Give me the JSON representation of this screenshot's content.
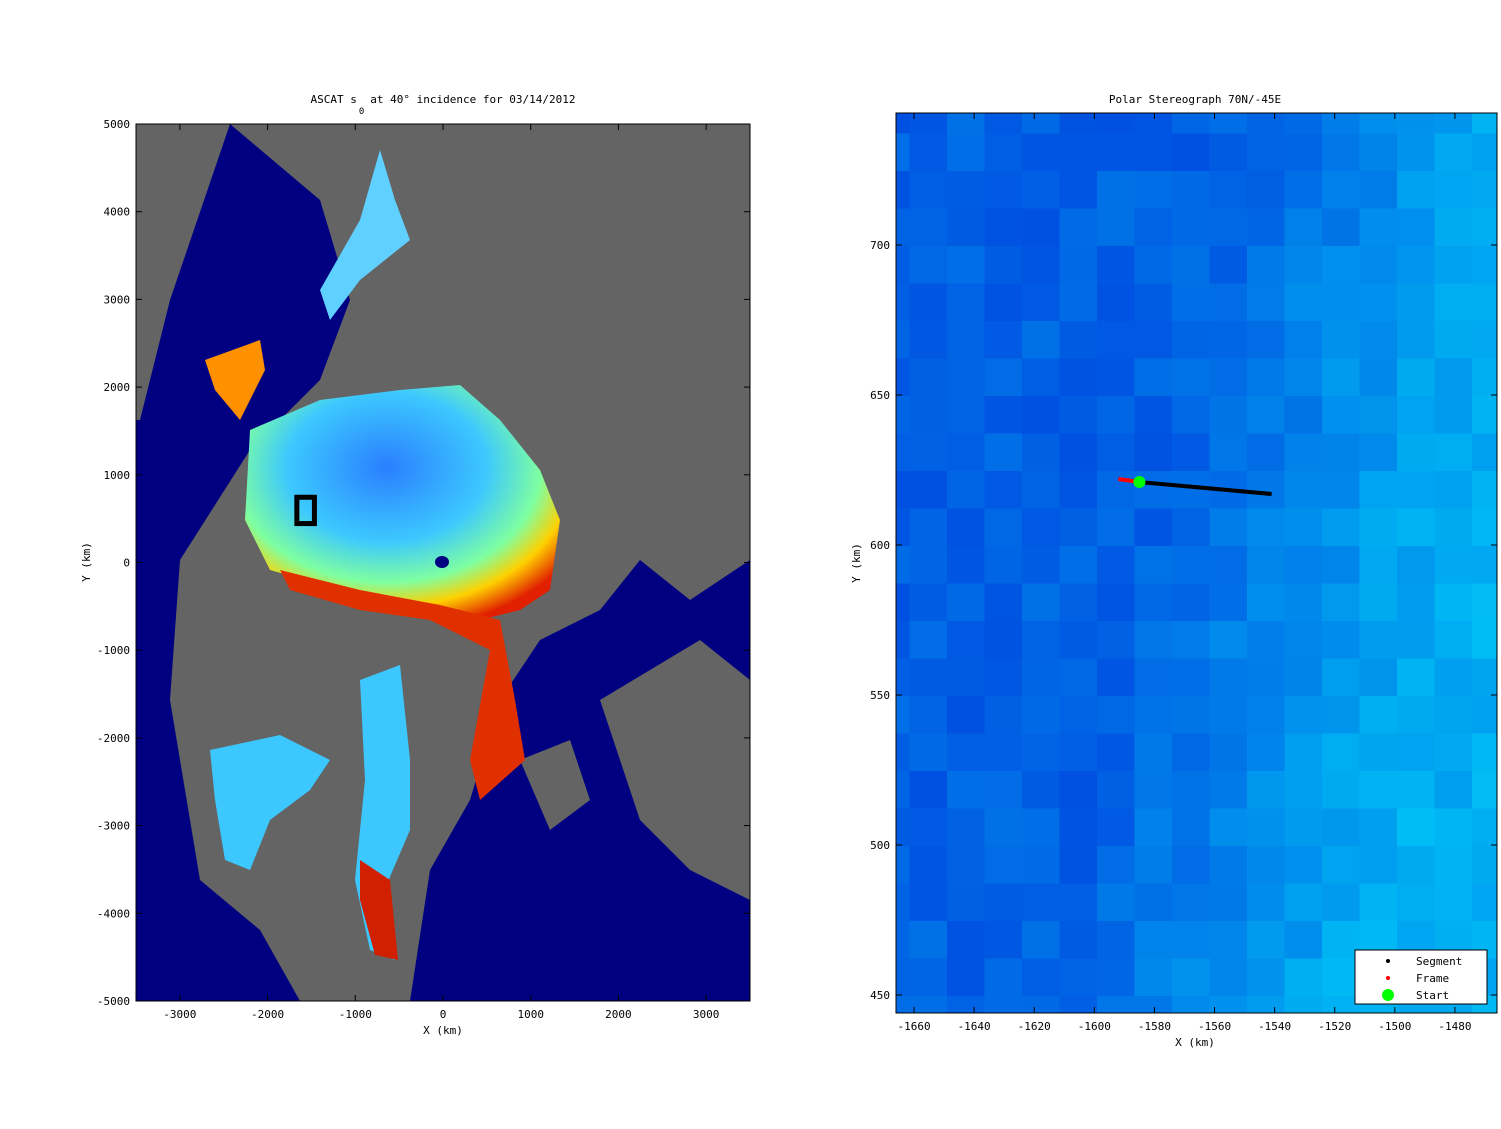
{
  "chart_data": [
    {
      "type": "image",
      "title_prefix": "ASCAT s",
      "title_subscript": "0",
      "title_suffix": "at 40° incidence for 03/14/2012",
      "xlabel": "X (km)",
      "ylabel": "Y (km)",
      "xlim": [
        -3500,
        3500
      ],
      "ylim": [
        -5000,
        5000
      ],
      "xticks": [
        -3000,
        -2000,
        -1000,
        0,
        1000,
        2000,
        3000
      ],
      "yticks": [
        -5000,
        -4000,
        -3000,
        -2000,
        -1000,
        0,
        1000,
        2000,
        3000,
        4000,
        5000
      ]
    },
    {
      "type": "line",
      "title": "Polar Stereograph 70N/-45E",
      "xlabel": "X (km)",
      "ylabel": "Y (km)",
      "xlim": [
        -1666,
        -1466
      ],
      "ylim": [
        444,
        744
      ],
      "xticks": [
        -1660,
        -1640,
        -1620,
        -1600,
        -1580,
        -1560,
        -1540,
        -1520,
        -1500,
        -1480
      ],
      "yticks": [
        450,
        500,
        550,
        600,
        650,
        700
      ],
      "legend": "lower right",
      "series": [
        {
          "name": "Segment",
          "color": "#000000",
          "x": [
            -1585,
            -1541
          ],
          "y": [
            621,
            617
          ]
        },
        {
          "name": "Frame",
          "color": "#ff0000",
          "x": [
            -1592,
            -1585
          ],
          "y": [
            622,
            621
          ]
        },
        {
          "name": "Start",
          "color": "#00ff00",
          "x": [
            -1585
          ],
          "y": [
            621
          ]
        }
      ]
    }
  ]
}
